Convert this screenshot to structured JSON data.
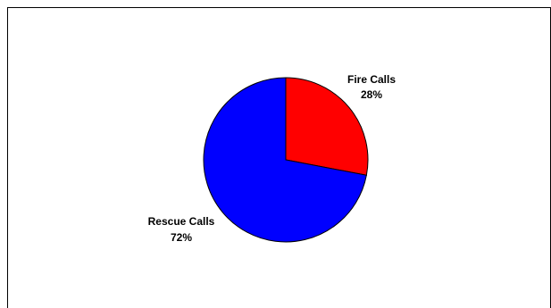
{
  "chart_data": {
    "type": "pie",
    "title": "",
    "start_angle_deg": 0,
    "direction": "clockwise",
    "slices": [
      {
        "label": "Fire Calls",
        "value": 28,
        "percent_label": "28%",
        "color": "#ff0000"
      },
      {
        "label": "Rescue Calls",
        "value": 72,
        "percent_label": "72%",
        "color": "#0000ff"
      }
    ],
    "edge_color": "#000000"
  }
}
